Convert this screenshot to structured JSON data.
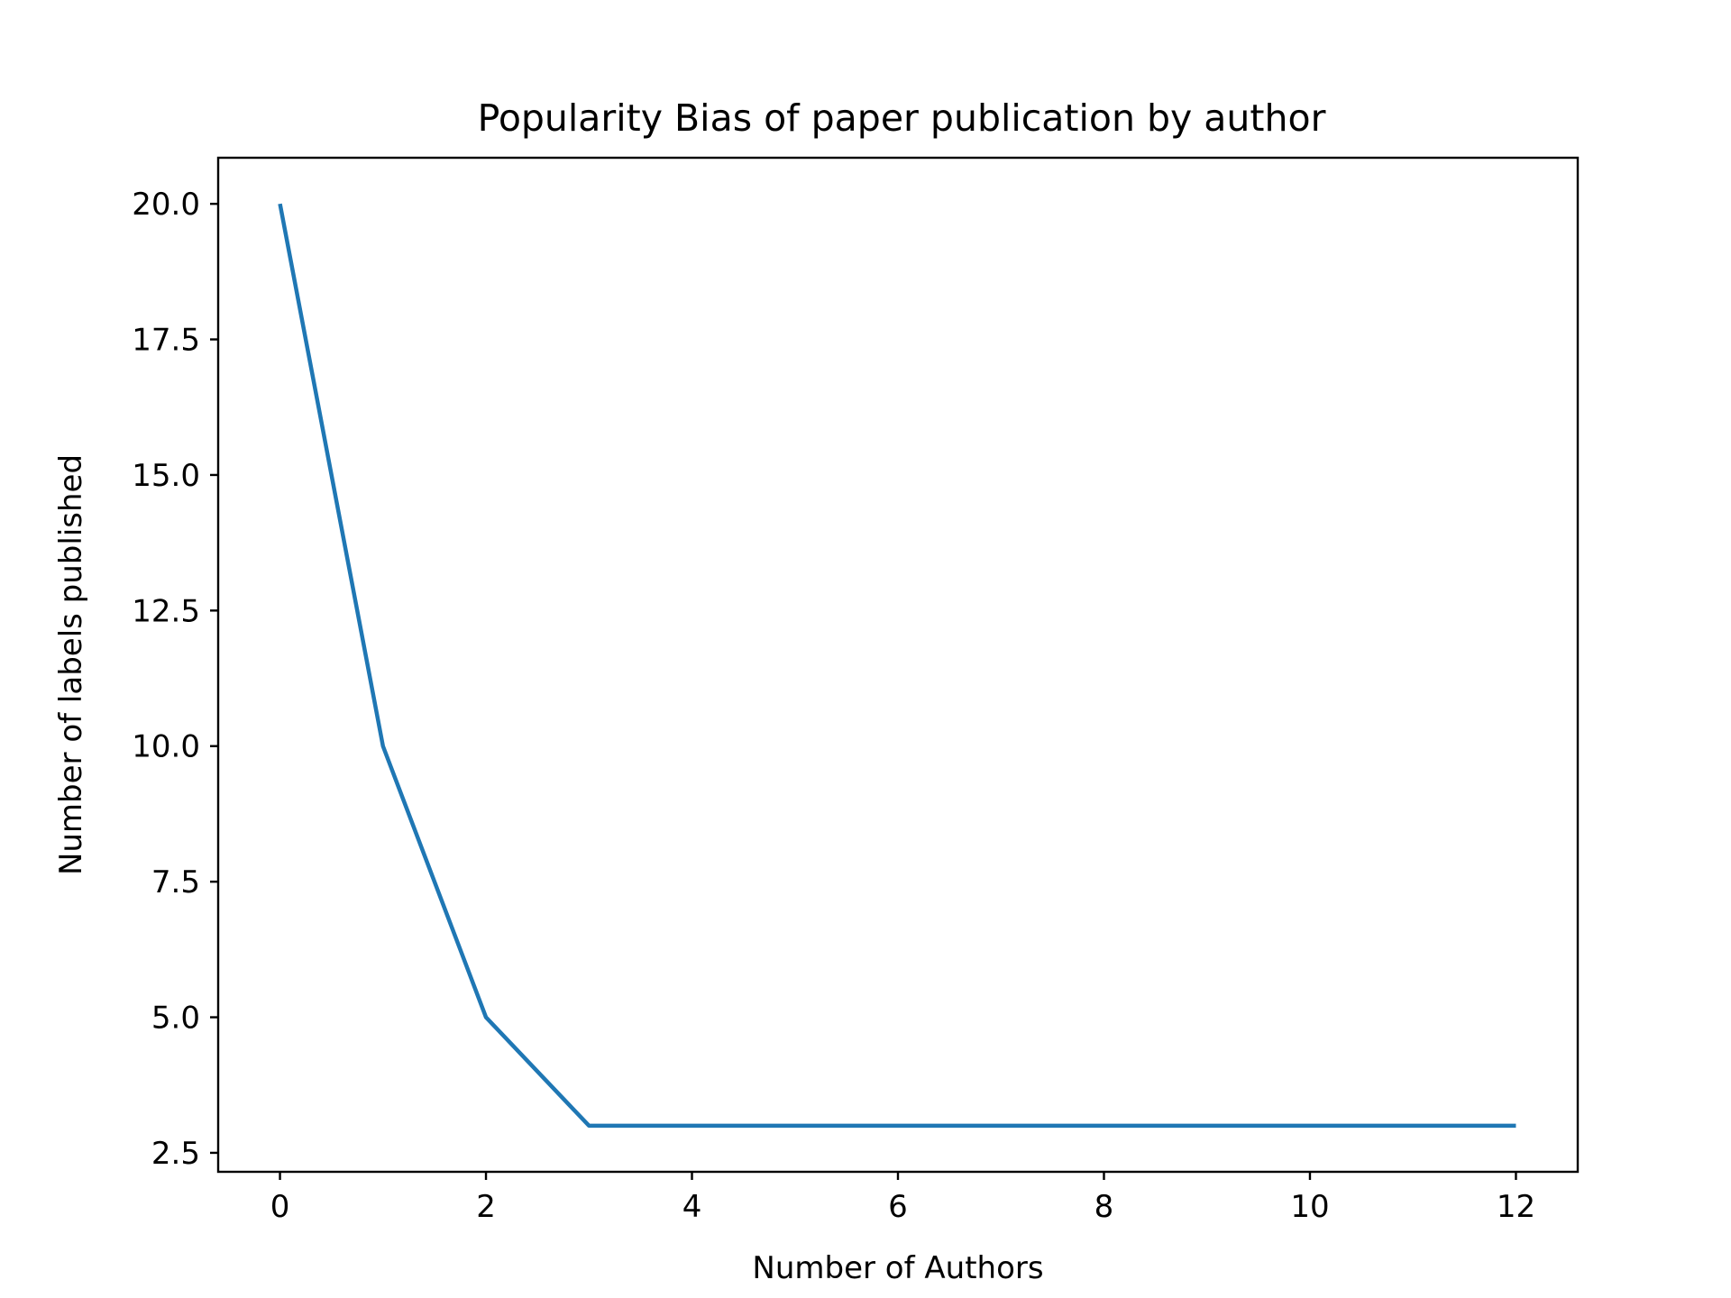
{
  "chart_data": {
    "type": "line",
    "title": "Popularity Bias of paper publication by author",
    "xlabel": "Number of Authors",
    "ylabel": "Number of labels published",
    "xlim": [
      -0.6,
      12.6
    ],
    "ylim": [
      2.15,
      20.85
    ],
    "xticks": [
      0,
      2,
      4,
      6,
      8,
      10,
      12
    ],
    "xtick_labels": [
      "0",
      "2",
      "4",
      "6",
      "8",
      "10",
      "12"
    ],
    "yticks": [
      2.5,
      5.0,
      7.5,
      10.0,
      12.5,
      15.0,
      17.5,
      20.0
    ],
    "ytick_labels": [
      "2.5",
      "5.0",
      "7.5",
      "10.0",
      "12.5",
      "15.0",
      "17.5",
      "20.0"
    ],
    "grid": false,
    "series": [
      {
        "x": [
          0,
          1,
          2,
          3,
          4,
          5,
          6,
          7,
          8,
          9,
          10,
          11,
          12
        ],
        "y": [
          20,
          10,
          5,
          3,
          3,
          3,
          3,
          3,
          3,
          3,
          3,
          3,
          3
        ],
        "color": "#1f77b4"
      }
    ]
  }
}
